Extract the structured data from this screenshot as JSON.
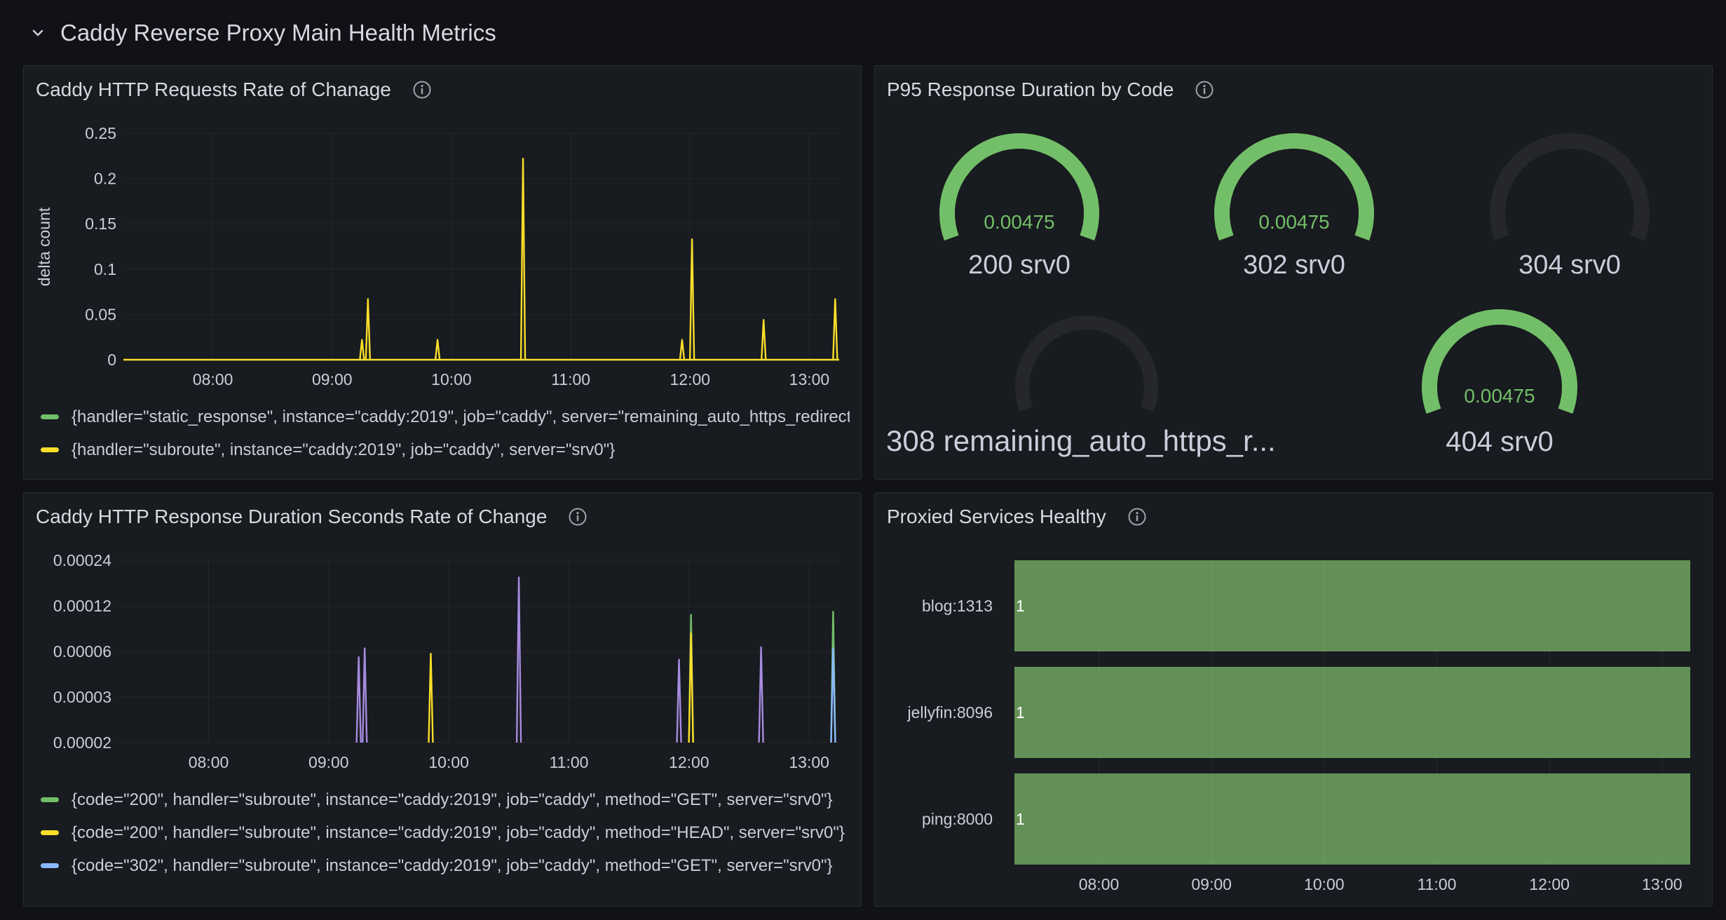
{
  "row": {
    "title": "Caddy Reverse Proxy Main Health Metrics"
  },
  "panels": {
    "requests": {
      "title": "Caddy HTTP Requests Rate of Chanage",
      "ylabel": "delta count",
      "legend": [
        {
          "text": "{handler=\"static_response\", instance=\"caddy:2019\", job=\"caddy\", server=\"remaining_auto_https_redirects\"}",
          "color": "#73bf69"
        },
        {
          "text": "{handler=\"subroute\", instance=\"caddy:2019\", job=\"caddy\", server=\"srv0\"}",
          "color": "#fade2a"
        }
      ]
    },
    "p95": {
      "title": "P95 Response Duration by Code",
      "gauges": [
        {
          "label": "200 srv0",
          "value": "0.00475",
          "fill": 1
        },
        {
          "label": "302 srv0",
          "value": "0.00475",
          "fill": 1
        },
        {
          "label": "304 srv0",
          "value": "",
          "fill": 0
        },
        {
          "label": "308 remaining_auto_https_r...",
          "value": "",
          "fill": 0
        },
        {
          "label": "404 srv0",
          "value": "0.00475",
          "fill": 1
        }
      ],
      "colors": {
        "fill": "#73bf69",
        "track": "#25272c"
      }
    },
    "duration": {
      "title": "Caddy HTTP Response Duration Seconds Rate of Change",
      "legend": [
        {
          "text": "{code=\"200\", handler=\"subroute\", instance=\"caddy:2019\", job=\"caddy\", method=\"GET\", server=\"srv0\"}",
          "color": "#73bf69"
        },
        {
          "text": "{code=\"200\", handler=\"subroute\", instance=\"caddy:2019\", job=\"caddy\", method=\"HEAD\", server=\"srv0\"}",
          "color": "#fade2a"
        },
        {
          "text": "{code=\"302\", handler=\"subroute\", instance=\"caddy:2019\", job=\"caddy\", method=\"GET\", server=\"srv0\"}",
          "color": "#8ab8ff"
        }
      ]
    },
    "healthy": {
      "title": "Proxied Services Healthy"
    }
  },
  "chart_data": [
    {
      "id": "requests",
      "type": "line",
      "ylabel": "delta count",
      "ylim": [
        0,
        0.25
      ],
      "yticks": [
        "0",
        "0.05",
        "0.1",
        "0.15",
        "0.2",
        "0.25"
      ],
      "yticks_values": [
        0,
        0.05,
        0.1,
        0.15,
        0.2,
        0.25
      ],
      "xlim": [
        "07:15",
        "13:15"
      ],
      "xticks": [
        "08:00",
        "09:00",
        "10:00",
        "11:00",
        "12:00",
        "13:00"
      ],
      "grid": true,
      "legend_position": "bottom",
      "series": [
        {
          "name": "{handler=\"static_response\", instance=\"caddy:2019\", job=\"caddy\", server=\"remaining_auto_https_redirects\"}",
          "color": "#73bf69",
          "spikes": []
        },
        {
          "name": "{handler=\"subroute\", instance=\"caddy:2019\", job=\"caddy\", server=\"srv0\"}",
          "color": "#fade2a",
          "spikes": [
            [
              "09:15",
              0.022
            ],
            [
              "09:18",
              0.067
            ],
            [
              "09:53",
              0.022
            ],
            [
              "10:36",
              0.222
            ],
            [
              "11:56",
              0.022
            ],
            [
              "12:01",
              0.133
            ],
            [
              "12:37",
              0.044
            ],
            [
              "13:13",
              0.067
            ]
          ]
        }
      ]
    },
    {
      "id": "duration",
      "type": "line",
      "log_scale": true,
      "ylim": [
        2e-05,
        0.00024
      ],
      "yticks": [
        "0.00002",
        "0.00003",
        "0.00006",
        "0.00012",
        "0.00024"
      ],
      "yticks_values": [
        2e-05,
        3e-05,
        6e-05,
        0.00012,
        0.00024
      ],
      "xlim": [
        "07:15",
        "13:15"
      ],
      "xticks": [
        "08:00",
        "09:00",
        "10:00",
        "11:00",
        "12:00",
        "13:00"
      ],
      "grid": true,
      "legend_position": "bottom",
      "series": [
        {
          "name": "{code=\"200\", handler=\"subroute\", instance=\"caddy:2019\", job=\"caddy\", method=\"GET\", server=\"srv0\"}",
          "color": "#73bf69",
          "spikes": [
            [
              "12:01",
              0.000105
            ],
            [
              "13:12",
              0.00011
            ]
          ]
        },
        {
          "name": "{code=\"200\", handler=\"subroute\", instance=\"caddy:2019\", job=\"caddy\", method=\"HEAD\", server=\"srv0\"}",
          "color": "#fade2a",
          "spikes": [
            [
              "09:51",
              5.8e-05
            ],
            [
              "12:01",
              7.9e-05
            ]
          ]
        },
        {
          "name": "{code=\"302\", handler=\"subroute\", instance=\"caddy:2019\", job=\"caddy\", method=\"GET\", server=\"srv0\"}",
          "color": "#8ab8ff",
          "spikes": [
            [
              "13:12",
              6.3e-05
            ]
          ]
        },
        {
          "name": "",
          "color": "#a78be0",
          "spikes": [
            [
              "09:15",
              5.5e-05
            ],
            [
              "09:18",
              6.3e-05
            ],
            [
              "10:35",
              0.000185
            ],
            [
              "11:55",
              5.3e-05
            ],
            [
              "12:36",
              6.4e-05
            ]
          ]
        }
      ]
    },
    {
      "id": "healthy",
      "type": "bar",
      "categories": [
        "blog:1313",
        "jellyfin:8096",
        "ping:8000"
      ],
      "values": [
        1,
        1,
        1
      ],
      "value_labels": [
        "1",
        "1",
        "1"
      ],
      "xlim": [
        "07:15",
        "13:15"
      ],
      "xticks": [
        "08:00",
        "09:00",
        "10:00",
        "11:00",
        "12:00",
        "13:00"
      ],
      "colors": {
        "bar": "#629056"
      }
    }
  ]
}
